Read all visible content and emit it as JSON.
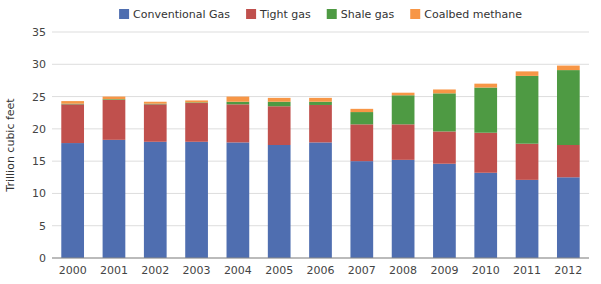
{
  "chart_data": {
    "type": "bar",
    "stacked": true,
    "categories": [
      "2000",
      "2001",
      "2002",
      "2003",
      "2004",
      "2005",
      "2006",
      "2007",
      "2008",
      "2009",
      "2010",
      "2011",
      "2012"
    ],
    "series": [
      {
        "name": "Conventional Gas",
        "color": "#4F6EB0",
        "values": [
          17.8,
          18.3,
          18.0,
          18.0,
          17.9,
          17.5,
          17.9,
          15.0,
          15.2,
          14.6,
          13.2,
          12.1,
          12.5
        ]
      },
      {
        "name": "Tight gas",
        "color": "#C0504D",
        "values": [
          6.0,
          6.2,
          5.8,
          6.0,
          5.9,
          6.0,
          5.8,
          5.7,
          5.5,
          5.0,
          6.2,
          5.6,
          5.0
        ]
      },
      {
        "name": "Shale gas",
        "color": "#4E9A43",
        "values": [
          0.1,
          0.1,
          0.1,
          0.1,
          0.4,
          0.7,
          0.5,
          1.9,
          4.5,
          5.9,
          7.0,
          10.5,
          11.6
        ]
      },
      {
        "name": "Coalbed methane",
        "color": "#F79646",
        "values": [
          0.4,
          0.4,
          0.3,
          0.3,
          0.8,
          0.6,
          0.6,
          0.5,
          0.4,
          0.6,
          0.6,
          0.7,
          0.7
        ]
      }
    ],
    "y_label": "Trillion cubic feet",
    "ylim": [
      0,
      35
    ],
    "yticks": [
      0,
      5,
      10,
      15,
      20,
      25,
      30,
      35
    ],
    "grid": true,
    "legend": "top"
  }
}
